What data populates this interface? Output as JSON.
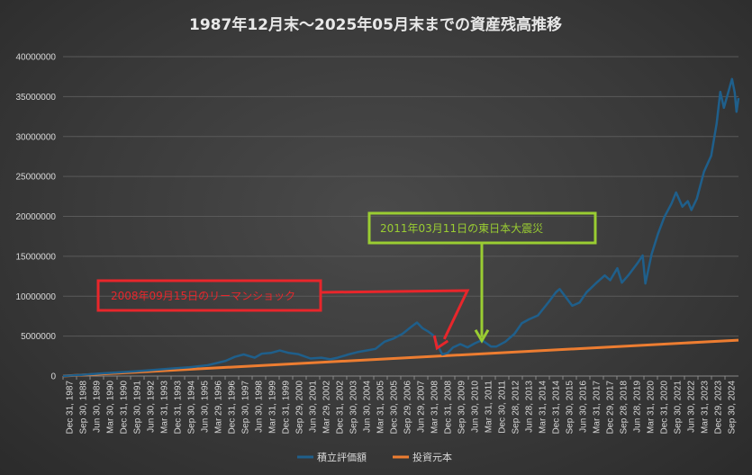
{
  "chart_data": {
    "type": "line",
    "title": "1987年12月末～2025年05月末までの資産残高推移",
    "ylim": [
      0,
      40000000
    ],
    "y_ticks": [
      0,
      5000000,
      10000000,
      15000000,
      20000000,
      25000000,
      30000000,
      35000000,
      40000000
    ],
    "x_tick_labels": [
      "Dec 31, 1987",
      "Sep 30, 1988",
      "Jun 30, 1989",
      "Mar 30, 1990",
      "Dec 31, 1990",
      "Sep 30, 1991",
      "Jun 30, 1992",
      "Mar 31, 1993",
      "Dec 31, 1993",
      "Sep 30, 1994",
      "Jun 30, 1995",
      "Mar 29, 1996",
      "Dec 31, 1996",
      "Sep 30, 1997",
      "Jun 30, 1998",
      "Mar 31, 1999",
      "Dec 31, 1999",
      "Sep 29, 2000",
      "Jun 30, 2001",
      "Mar 29, 2002",
      "Dec 31, 2002",
      "Sep 30, 2003",
      "Jun 30, 2004",
      "Mar 31, 2005",
      "Dec 30, 2005",
      "Sep 29, 2006",
      "Jun 29, 2007",
      "Mar 31, 2008",
      "Dec 31, 2008",
      "Sep 30, 2009",
      "Jun 30, 2010",
      "Mar 31, 2011",
      "Dec 30, 2011",
      "Sep 28, 2012",
      "Jun 28, 2013",
      "Mar 31, 2014",
      "Dec 31, 2014",
      "Sep 30, 2015",
      "Jun 30, 2016",
      "Mar 31, 2017",
      "Dec 29, 2017",
      "Sep 28, 2018",
      "Jun 28, 2019",
      "Mar 31, 2020",
      "Dec 31, 2020",
      "Sep 30, 2021",
      "Jun 30, 2022",
      "Mar 31, 2023",
      "Dec 29, 2023",
      "Sep 30, 2024"
    ],
    "x_range": [
      1987.99,
      2025.41
    ],
    "grid": true,
    "legend_position": "bottom",
    "series": [
      {
        "name": "積立評価額",
        "color": "#1f5f8b",
        "points": [
          [
            1987.99,
            0
          ],
          [
            1989.0,
            150000
          ],
          [
            1990.0,
            320000
          ],
          [
            1991.0,
            450000
          ],
          [
            1992.0,
            600000
          ],
          [
            1993.0,
            750000
          ],
          [
            1994.0,
            950000
          ],
          [
            1995.0,
            1100000
          ],
          [
            1996.0,
            1350000
          ],
          [
            1997.0,
            1900000
          ],
          [
            1997.5,
            2400000
          ],
          [
            1998.0,
            2700000
          ],
          [
            1998.6,
            2300000
          ],
          [
            1999.0,
            2800000
          ],
          [
            1999.5,
            2900000
          ],
          [
            2000.0,
            3200000
          ],
          [
            2000.5,
            2900000
          ],
          [
            2001.0,
            2750000
          ],
          [
            2001.7,
            2200000
          ],
          [
            2002.3,
            2300000
          ],
          [
            2002.8,
            2100000
          ],
          [
            2003.2,
            2300000
          ],
          [
            2003.8,
            2700000
          ],
          [
            2004.3,
            3000000
          ],
          [
            2004.8,
            3200000
          ],
          [
            2005.3,
            3400000
          ],
          [
            2005.8,
            4300000
          ],
          [
            2006.3,
            4700000
          ],
          [
            2006.8,
            5300000
          ],
          [
            2007.3,
            6200000
          ],
          [
            2007.6,
            6700000
          ],
          [
            2007.9,
            6000000
          ],
          [
            2008.2,
            5600000
          ],
          [
            2008.5,
            5100000
          ],
          [
            2008.8,
            3600000
          ],
          [
            2009.0,
            2700000
          ],
          [
            2009.3,
            2900000
          ],
          [
            2009.6,
            3600000
          ],
          [
            2010.0,
            4000000
          ],
          [
            2010.4,
            3600000
          ],
          [
            2010.8,
            4100000
          ],
          [
            2011.2,
            4500000
          ],
          [
            2011.7,
            3700000
          ],
          [
            2012.0,
            3700000
          ],
          [
            2012.5,
            4300000
          ],
          [
            2013.0,
            5300000
          ],
          [
            2013.4,
            6600000
          ],
          [
            2013.8,
            7100000
          ],
          [
            2014.3,
            7600000
          ],
          [
            2014.9,
            9300000
          ],
          [
            2015.3,
            10500000
          ],
          [
            2015.5,
            10900000
          ],
          [
            2015.8,
            10000000
          ],
          [
            2016.2,
            8800000
          ],
          [
            2016.6,
            9200000
          ],
          [
            2017.0,
            10500000
          ],
          [
            2017.5,
            11600000
          ],
          [
            2018.0,
            12600000
          ],
          [
            2018.3,
            12000000
          ],
          [
            2018.7,
            13500000
          ],
          [
            2018.95,
            11700000
          ],
          [
            2019.3,
            12600000
          ],
          [
            2019.8,
            14100000
          ],
          [
            2020.1,
            15100000
          ],
          [
            2020.25,
            11600000
          ],
          [
            2020.6,
            15300000
          ],
          [
            2020.95,
            17800000
          ],
          [
            2021.3,
            19900000
          ],
          [
            2021.7,
            21600000
          ],
          [
            2021.95,
            23000000
          ],
          [
            2022.3,
            21200000
          ],
          [
            2022.6,
            21900000
          ],
          [
            2022.8,
            20800000
          ],
          [
            2023.1,
            22200000
          ],
          [
            2023.5,
            25600000
          ],
          [
            2023.9,
            27600000
          ],
          [
            2024.2,
            31600000
          ],
          [
            2024.4,
            35600000
          ],
          [
            2024.6,
            33600000
          ],
          [
            2024.9,
            36000000
          ],
          [
            2025.05,
            37200000
          ],
          [
            2025.2,
            35500000
          ],
          [
            2025.3,
            33100000
          ],
          [
            2025.41,
            34800000
          ]
        ]
      },
      {
        "name": "投資元本",
        "color": "#ed7d31",
        "points": [
          [
            1987.99,
            0
          ],
          [
            2025.41,
            4500000
          ]
        ]
      }
    ],
    "annotations": [
      {
        "label": "2008年09月15日のリーマンショック",
        "color": "#e8262b",
        "target_x": 2008.71,
        "target_y": 3500000
      },
      {
        "label": "2011年03月11日の東日本大震災",
        "color": "#9acd32",
        "target_x": 2011.19,
        "target_y": 4200000
      }
    ]
  }
}
